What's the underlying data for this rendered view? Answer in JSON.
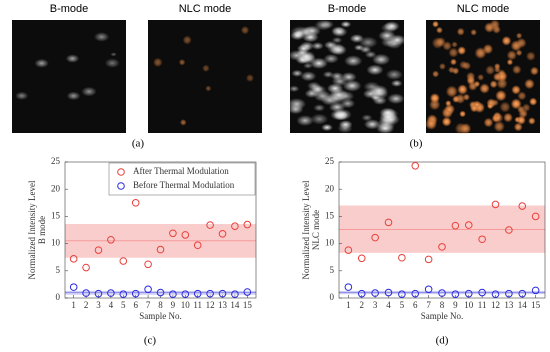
{
  "image_panels": [
    {
      "caption": "(a)",
      "titles": [
        "B-mode",
        "NLC mode"
      ],
      "style": "sparse"
    },
    {
      "caption": "(b)",
      "titles": [
        "B-mode",
        "NLC mode"
      ],
      "style": "dense"
    }
  ],
  "chart_data": [
    {
      "type": "scatter",
      "caption": "(c)",
      "xlabel": "Sample No.",
      "ylabel": [
        "Normalized Intensity Level",
        "B mode"
      ],
      "x": [
        1,
        2,
        3,
        4,
        5,
        6,
        7,
        8,
        9,
        10,
        11,
        12,
        13,
        14,
        15
      ],
      "xlim": [
        0.3,
        15.7
      ],
      "xticks": [
        1,
        2,
        3,
        4,
        5,
        6,
        7,
        8,
        9,
        10,
        11,
        12,
        13,
        14,
        15
      ],
      "ylim": [
        0,
        25
      ],
      "yticks": [
        0,
        5,
        10,
        15,
        20,
        25
      ],
      "legend": "upper right",
      "series": [
        {
          "name": "After Thermal Modulation",
          "color": "#e8403a",
          "band_color": "#f9c4c4",
          "values": [
            7.2,
            5.6,
            8.8,
            10.7,
            6.8,
            17.5,
            6.2,
            8.9,
            11.9,
            11.6,
            9.7,
            13.4,
            11.8,
            13.2,
            13.5
          ],
          "band": {
            "lower": 7.4,
            "upper": 13.6,
            "mean": 10.5
          }
        },
        {
          "name": "Before Thermal Modulation",
          "color": "#2a2adf",
          "band_color": "#c4c4f2",
          "values": [
            2.0,
            0.9,
            0.8,
            0.9,
            0.7,
            0.8,
            1.6,
            1.0,
            0.7,
            0.7,
            0.8,
            0.8,
            0.8,
            0.7,
            1.1
          ],
          "band": {
            "lower": 0.6,
            "upper": 1.3,
            "mean": 1.0
          }
        }
      ]
    },
    {
      "type": "scatter",
      "caption": "(d)",
      "xlabel": "Sample No.",
      "ylabel": [
        "Normalized Intensity Level",
        "NLC mode"
      ],
      "x": [
        1,
        2,
        3,
        4,
        5,
        6,
        7,
        8,
        9,
        10,
        11,
        12,
        13,
        14,
        15
      ],
      "xlim": [
        0.3,
        15.7
      ],
      "xticks": [
        1,
        2,
        3,
        4,
        5,
        6,
        7,
        8,
        9,
        10,
        11,
        12,
        13,
        14,
        15
      ],
      "ylim": [
        0,
        25
      ],
      "yticks": [
        0,
        5,
        10,
        15,
        20,
        25
      ],
      "series": [
        {
          "color": "#e8403a",
          "band_color": "#f9c4c4",
          "values": [
            8.8,
            7.3,
            11.1,
            13.9,
            7.4,
            24.3,
            7.1,
            9.4,
            13.3,
            13.4,
            10.8,
            17.2,
            12.5,
            16.9,
            15.0
          ],
          "band": {
            "lower": 8.3,
            "upper": 17.0,
            "mean": 12.6
          }
        },
        {
          "color": "#2a2adf",
          "band_color": "#c4c4f2",
          "values": [
            2.0,
            0.8,
            0.9,
            1.0,
            0.7,
            0.8,
            1.6,
            0.9,
            0.7,
            0.8,
            1.0,
            0.7,
            0.8,
            0.8,
            1.4
          ],
          "band": {
            "lower": 0.7,
            "upper": 1.3,
            "mean": 1.0
          }
        }
      ]
    }
  ]
}
